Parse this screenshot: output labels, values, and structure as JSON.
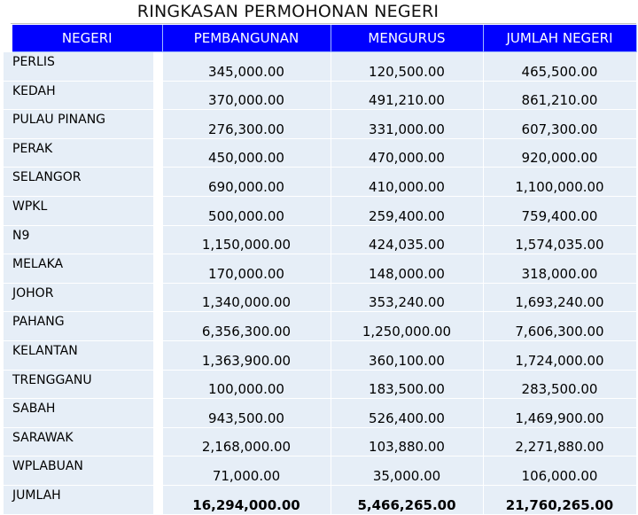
{
  "title": "RINGKASAN PERMOHONAN NEGERI",
  "columns": [
    "NEGERI",
    "PEMBANGUNAN",
    "MENGURUS",
    "JUMLAH NEGERI"
  ],
  "rows": [
    {
      "state": "PERLIS",
      "pembangunan": "345,000.00",
      "mengurus": "120,500.00",
      "jumlah": "465,500.00"
    },
    {
      "state": "KEDAH",
      "pembangunan": "370,000.00",
      "mengurus": "491,210.00",
      "jumlah": "861,210.00"
    },
    {
      "state": "PULAU PINANG",
      "pembangunan": "276,300.00",
      "mengurus": "331,000.00",
      "jumlah": "607,300.00"
    },
    {
      "state": "PERAK",
      "pembangunan": "450,000.00",
      "mengurus": "470,000.00",
      "jumlah": "920,000.00"
    },
    {
      "state": "SELANGOR",
      "pembangunan": "690,000.00",
      "mengurus": "410,000.00",
      "jumlah": "1,100,000.00"
    },
    {
      "state": "WPKL",
      "pembangunan": "500,000.00",
      "mengurus": "259,400.00",
      "jumlah": "759,400.00"
    },
    {
      "state": "N9",
      "pembangunan": "1,150,000.00",
      "mengurus": "424,035.00",
      "jumlah": "1,574,035.00"
    },
    {
      "state": "MELAKA",
      "pembangunan": "170,000.00",
      "mengurus": "148,000.00",
      "jumlah": "318,000.00"
    },
    {
      "state": "JOHOR",
      "pembangunan": "1,340,000.00",
      "mengurus": "353,240.00",
      "jumlah": "1,693,240.00"
    },
    {
      "state": "PAHANG",
      "pembangunan": "6,356,300.00",
      "mengurus": "1,250,000.00",
      "jumlah": "7,606,300.00"
    },
    {
      "state": "KELANTAN",
      "pembangunan": "1,363,900.00",
      "mengurus": "360,100.00",
      "jumlah": "1,724,000.00"
    },
    {
      "state": "TRENGGANU",
      "pembangunan": "100,000.00",
      "mengurus": "183,500.00",
      "jumlah": "283,500.00"
    },
    {
      "state": "SABAH",
      "pembangunan": "943,500.00",
      "mengurus": "526,400.00",
      "jumlah": "1,469,900.00"
    },
    {
      "state": "SARAWAK",
      "pembangunan": "2,168,000.00",
      "mengurus": "103,880.00",
      "jumlah": "2,271,880.00"
    },
    {
      "state": "WPLABUAN",
      "pembangunan": "71,000.00",
      "mengurus": "35,000.00",
      "jumlah": "106,000.00"
    }
  ],
  "total": {
    "state": "JUMLAH",
    "pembangunan": "16,294,000.00",
    "mengurus": "5,466,265.00",
    "jumlah": "21,760,265.00"
  }
}
